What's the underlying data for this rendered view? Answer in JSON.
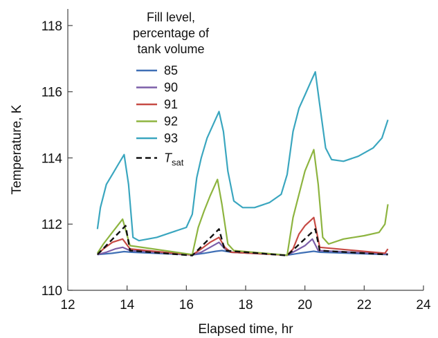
{
  "chart_data": {
    "type": "line",
    "xlabel": "Elapsed time, hr",
    "ylabel": "Temperature, K",
    "xlim": [
      12,
      24
    ],
    "ylim": [
      110,
      118.5
    ],
    "xticks": [
      12,
      14,
      16,
      18,
      20,
      22,
      24
    ],
    "yticks": [
      110,
      112,
      114,
      116,
      118
    ],
    "grid": false,
    "legend": {
      "title_lines": [
        "Fill level,",
        "percentage of",
        "tank volume"
      ],
      "placement": "top-center"
    },
    "series": [
      {
        "name": "85",
        "color": "#3f6fb5",
        "dash": false,
        "points": [
          [
            13.0,
            111.08
          ],
          [
            13.5,
            111.12
          ],
          [
            13.9,
            111.17
          ],
          [
            14.15,
            111.15
          ],
          [
            16.2,
            111.07
          ],
          [
            16.6,
            111.12
          ],
          [
            17.0,
            111.18
          ],
          [
            17.2,
            111.2
          ],
          [
            17.5,
            111.15
          ],
          [
            19.4,
            111.06
          ],
          [
            19.8,
            111.12
          ],
          [
            20.3,
            111.18
          ],
          [
            20.5,
            111.15
          ],
          [
            22.8,
            111.08
          ]
        ]
      },
      {
        "name": "90",
        "color": "#7b5ea8",
        "dash": false,
        "points": [
          [
            13.0,
            111.08
          ],
          [
            13.3,
            111.15
          ],
          [
            13.6,
            111.25
          ],
          [
            13.85,
            111.3
          ],
          [
            14.1,
            111.2
          ],
          [
            16.2,
            111.07
          ],
          [
            16.5,
            111.15
          ],
          [
            16.8,
            111.3
          ],
          [
            17.1,
            111.45
          ],
          [
            17.3,
            111.25
          ],
          [
            17.5,
            111.15
          ],
          [
            19.4,
            111.06
          ],
          [
            19.7,
            111.2
          ],
          [
            20.0,
            111.35
          ],
          [
            20.25,
            111.55
          ],
          [
            20.45,
            111.2
          ],
          [
            22.8,
            111.1
          ]
        ]
      },
      {
        "name": "91",
        "color": "#c64a44",
        "dash": false,
        "points": [
          [
            13.0,
            111.08
          ],
          [
            13.2,
            111.25
          ],
          [
            13.5,
            111.45
          ],
          [
            13.85,
            111.55
          ],
          [
            14.1,
            111.25
          ],
          [
            16.2,
            111.07
          ],
          [
            16.5,
            111.25
          ],
          [
            16.8,
            111.45
          ],
          [
            17.1,
            111.6
          ],
          [
            17.3,
            111.3
          ],
          [
            17.5,
            111.15
          ],
          [
            19.4,
            111.06
          ],
          [
            19.6,
            111.25
          ],
          [
            19.8,
            111.7
          ],
          [
            20.0,
            111.95
          ],
          [
            20.3,
            112.2
          ],
          [
            20.5,
            111.3
          ],
          [
            22.7,
            111.12
          ],
          [
            22.8,
            111.25
          ]
        ]
      },
      {
        "name": "92",
        "color": "#8db43f",
        "dash": false,
        "points": [
          [
            13.0,
            111.12
          ],
          [
            13.2,
            111.4
          ],
          [
            13.5,
            111.75
          ],
          [
            13.85,
            112.15
          ],
          [
            14.1,
            111.35
          ],
          [
            16.2,
            111.08
          ],
          [
            16.4,
            111.9
          ],
          [
            16.6,
            112.4
          ],
          [
            16.8,
            112.85
          ],
          [
            17.05,
            113.35
          ],
          [
            17.2,
            112.6
          ],
          [
            17.4,
            111.4
          ],
          [
            17.6,
            111.2
          ],
          [
            19.4,
            111.06
          ],
          [
            19.6,
            112.2
          ],
          [
            19.8,
            112.9
          ],
          [
            20.0,
            113.6
          ],
          [
            20.3,
            114.25
          ],
          [
            20.45,
            113.2
          ],
          [
            20.6,
            111.6
          ],
          [
            20.8,
            111.4
          ],
          [
            21.3,
            111.55
          ],
          [
            22.0,
            111.65
          ],
          [
            22.5,
            111.75
          ],
          [
            22.7,
            112.0
          ],
          [
            22.8,
            112.6
          ]
        ]
      },
      {
        "name": "93",
        "color": "#3aa6bf",
        "dash": false,
        "points": [
          [
            13.0,
            111.85
          ],
          [
            13.1,
            112.5
          ],
          [
            13.3,
            113.2
          ],
          [
            13.5,
            113.5
          ],
          [
            13.7,
            113.8
          ],
          [
            13.9,
            114.1
          ],
          [
            14.05,
            113.2
          ],
          [
            14.2,
            111.6
          ],
          [
            14.4,
            111.5
          ],
          [
            15.0,
            111.6
          ],
          [
            15.5,
            111.75
          ],
          [
            16.0,
            111.9
          ],
          [
            16.2,
            112.3
          ],
          [
            16.35,
            113.4
          ],
          [
            16.5,
            114.0
          ],
          [
            16.7,
            114.6
          ],
          [
            16.9,
            115.0
          ],
          [
            17.1,
            115.4
          ],
          [
            17.25,
            114.8
          ],
          [
            17.4,
            113.6
          ],
          [
            17.6,
            112.7
          ],
          [
            17.9,
            112.5
          ],
          [
            18.3,
            112.5
          ],
          [
            18.8,
            112.65
          ],
          [
            19.2,
            112.9
          ],
          [
            19.4,
            113.5
          ],
          [
            19.6,
            114.8
          ],
          [
            19.8,
            115.5
          ],
          [
            20.0,
            115.9
          ],
          [
            20.2,
            116.3
          ],
          [
            20.35,
            116.6
          ],
          [
            20.5,
            115.6
          ],
          [
            20.7,
            114.3
          ],
          [
            20.9,
            113.95
          ],
          [
            21.3,
            113.9
          ],
          [
            21.8,
            114.05
          ],
          [
            22.3,
            114.3
          ],
          [
            22.6,
            114.6
          ],
          [
            22.8,
            115.15
          ]
        ]
      },
      {
        "name": "T",
        "name_sub": "sat",
        "color": "#111111",
        "dash": true,
        "points": [
          [
            13.0,
            111.08
          ],
          [
            13.95,
            111.95
          ],
          [
            14.1,
            111.2
          ],
          [
            16.2,
            111.05
          ],
          [
            17.1,
            111.85
          ],
          [
            17.3,
            111.2
          ],
          [
            19.4,
            111.05
          ],
          [
            20.35,
            111.85
          ],
          [
            20.5,
            111.2
          ],
          [
            22.8,
            111.08
          ]
        ]
      }
    ]
  }
}
